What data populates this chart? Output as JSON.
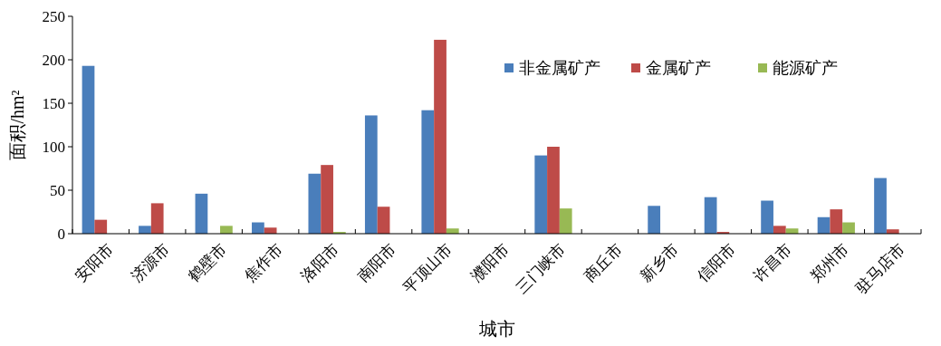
{
  "chart_data": {
    "type": "bar",
    "xlabel": "城市",
    "ylabel": "面积/hm²",
    "categories": [
      "安阳市",
      "济源市",
      "鹤壁市",
      "焦作市",
      "洛阳市",
      "南阳市",
      "平顶山市",
      "濮阳市",
      "三门峡市",
      "商丘市",
      "新乡市",
      "信阳市",
      "许昌市",
      "郑州市",
      "驻马店市"
    ],
    "series": [
      {
        "name": "非金属矿产",
        "color": "#4a7ebb",
        "values": [
          193,
          9,
          46,
          13,
          69,
          136,
          142,
          0,
          90,
          0,
          32,
          42,
          38,
          19,
          64
        ]
      },
      {
        "name": "金属矿产",
        "color": "#be4b48",
        "values": [
          16,
          35,
          0,
          7,
          79,
          31,
          223,
          0,
          100,
          0,
          0,
          2,
          9,
          28,
          5
        ]
      },
      {
        "name": "能源矿产",
        "color": "#98b954",
        "values": [
          0,
          0,
          9,
          0,
          2,
          0,
          6,
          0,
          29,
          0,
          0,
          0,
          6,
          13,
          0
        ]
      }
    ],
    "ylim": [
      0,
      250
    ],
    "yticks": [
      0,
      50,
      100,
      150,
      200,
      250
    ],
    "legend": "top right"
  }
}
